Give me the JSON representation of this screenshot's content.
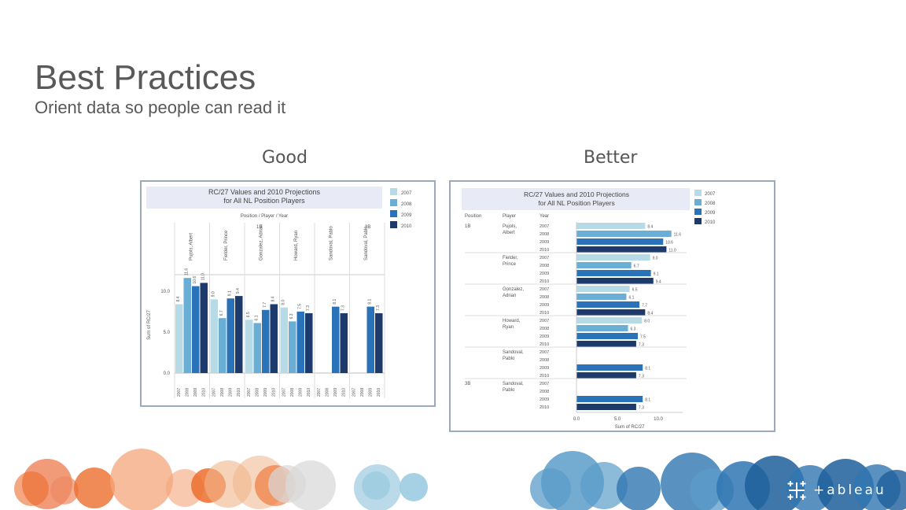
{
  "slide": {
    "title": "Best Practices",
    "subtitle": "Orient data so people can read it",
    "good_label": "Good",
    "better_label": "Better",
    "logo_text": "+ableau"
  },
  "colors": {
    "2007": "#b7dbe6",
    "2008": "#6aadd5",
    "2009": "#2b73b8",
    "2010": "#1c3a6b",
    "header_band": "#e8eaf5",
    "bubble_orange": [
      "#ee8a62",
      "#f4a57a",
      "#ec6d2c",
      "#f0b48a",
      "#d9d9d9"
    ],
    "bubble_blue": [
      "#5b9cc9",
      "#2f76b1",
      "#9ccbe0",
      "#1f5f9b",
      "#4aa0c8"
    ]
  },
  "chart_data": [
    {
      "type": "bar",
      "orientation": "vertical",
      "title": "RC/27 Values and 2010 Projections for All NL Position Players",
      "header": "Position / Player / Year",
      "ylabel": "Sum of RC/27",
      "ylim": [
        0,
        12
      ],
      "yticks": [
        "0.0",
        "5.0",
        "10.0"
      ],
      "legend": [
        "2007",
        "2008",
        "2009",
        "2010"
      ],
      "legend_position": "right",
      "positions": [
        "1B",
        "3B"
      ],
      "players": [
        {
          "position": "1B",
          "name": "Pujols, Albert",
          "values": [
            8.4,
            11.6,
            10.6,
            11.0
          ]
        },
        {
          "position": "1B",
          "name": "Fielder, Prince",
          "values": [
            9.0,
            6.7,
            9.1,
            9.4
          ]
        },
        {
          "position": "1B",
          "name": "Gonzalez, Adrian",
          "values": [
            6.5,
            6.1,
            7.7,
            8.4
          ]
        },
        {
          "position": "1B",
          "name": "Howard, Ryan",
          "values": [
            8.0,
            6.3,
            7.5,
            7.3
          ]
        },
        {
          "position": "1B",
          "name": "Sandoval, Pablo",
          "values": [
            null,
            null,
            8.1,
            7.3
          ]
        },
        {
          "position": "3B",
          "name": "Sandoval, Pablo",
          "values": [
            null,
            null,
            8.1,
            7.3
          ]
        }
      ]
    },
    {
      "type": "bar",
      "orientation": "horizontal",
      "title": "RC/27 Values and 2010 Projections for All NL Position Players",
      "col_headers": [
        "Position",
        "Player",
        "Year"
      ],
      "xlabel": "Sum of RC/27",
      "xlim": [
        0,
        13
      ],
      "xticks": [
        "0.0",
        "5.0",
        "10.0"
      ],
      "legend": [
        "2007",
        "2008",
        "2009",
        "2010"
      ],
      "legend_position": "right",
      "players": [
        {
          "position": "1B",
          "name": "Pujols, Albert",
          "values": [
            8.4,
            11.6,
            10.6,
            11.0
          ]
        },
        {
          "position": "",
          "name": "Fielder, Prince",
          "values": [
            9.0,
            6.7,
            9.1,
            9.4
          ]
        },
        {
          "position": "",
          "name": "Gonzalez, Adrian",
          "values": [
            6.5,
            6.1,
            7.7,
            8.4
          ]
        },
        {
          "position": "",
          "name": "Howard, Ryan",
          "values": [
            8.0,
            6.3,
            7.5,
            7.3
          ]
        },
        {
          "position": "",
          "name": "Sandoval, Pablo",
          "values": [
            null,
            null,
            8.1,
            7.3
          ]
        },
        {
          "position": "3B",
          "name": "Sandoval, Pablo",
          "values": [
            null,
            null,
            8.1,
            7.3
          ]
        }
      ]
    }
  ]
}
